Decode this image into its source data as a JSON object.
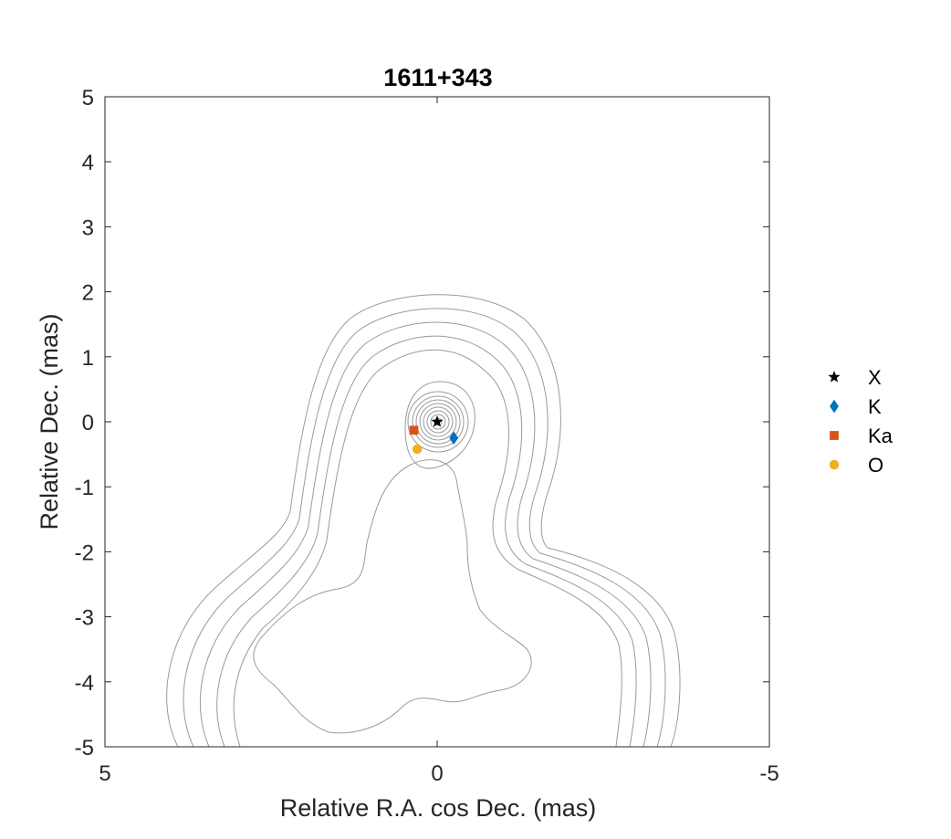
{
  "chart_data": {
    "type": "scatter",
    "title": "1611+343",
    "xlabel": "Relative R.A. cos Dec. (mas)",
    "ylabel": "Relative Dec. (mas)",
    "xlim": [
      5,
      -5
    ],
    "ylim": [
      -5,
      5
    ],
    "x_reversed": true,
    "x_ticks": [
      5,
      0,
      -5
    ],
    "y_ticks": [
      5,
      4,
      3,
      2,
      1,
      0,
      -1,
      -2,
      -3,
      -4,
      -5
    ],
    "x_tick_labels": [
      "5",
      "0",
      "-5"
    ],
    "y_tick_labels": [
      "5",
      "4",
      "3",
      "2",
      "1",
      "0",
      "-1",
      "-2",
      "-3",
      "-4",
      "-5"
    ],
    "grid": false,
    "legend_position": "outside-right",
    "background": "contour image (gray contour lines)",
    "series": [
      {
        "name": "X",
        "marker": "star",
        "color": "#000000",
        "points": [
          [
            0.0,
            0.0
          ]
        ]
      },
      {
        "name": "K",
        "marker": "diamond",
        "color": "#0072BD",
        "points": [
          [
            -0.25,
            -0.25
          ]
        ]
      },
      {
        "name": "Ka",
        "marker": "square",
        "color": "#D95319",
        "points": [
          [
            0.35,
            -0.13
          ]
        ]
      },
      {
        "name": "O",
        "marker": "circle",
        "color": "#EDB120",
        "points": [
          [
            0.3,
            -0.42
          ]
        ]
      }
    ]
  }
}
